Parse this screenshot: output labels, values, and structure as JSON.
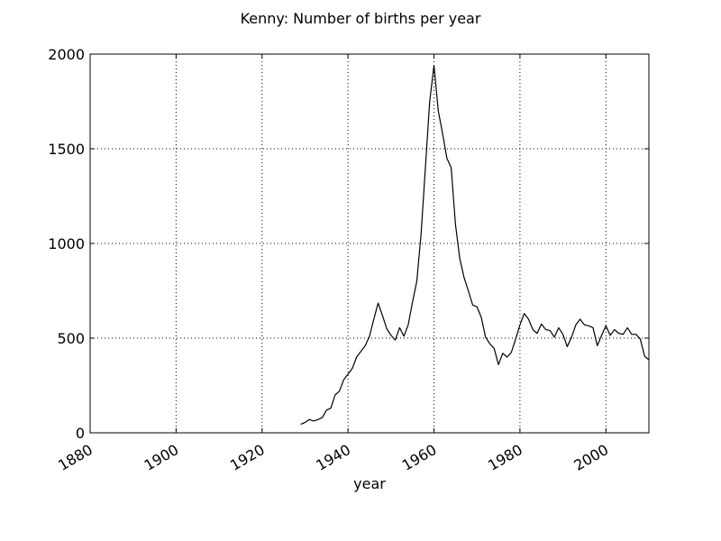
{
  "chart_data": {
    "type": "line",
    "title": "Kenny: Number of births per year",
    "xlabel": "year",
    "ylabel": "",
    "xlim": [
      1880,
      2010
    ],
    "ylim": [
      0,
      2000
    ],
    "x_ticks": [
      1880,
      1900,
      1920,
      1940,
      1960,
      1980,
      2000
    ],
    "y_ticks": [
      0,
      500,
      1000,
      1500,
      2000
    ],
    "grid": true,
    "line_color": "#000000",
    "series": [
      {
        "x": [
          1929,
          1930,
          1931,
          1932,
          1933,
          1934,
          1935,
          1936,
          1937,
          1938,
          1939,
          1940,
          1941,
          1942,
          1943,
          1944,
          1945,
          1946,
          1947,
          1948,
          1949,
          1950,
          1951,
          1952,
          1953,
          1954,
          1955,
          1956,
          1957,
          1958,
          1959,
          1960,
          1961,
          1962,
          1963,
          1964,
          1965,
          1966,
          1967,
          1968,
          1969,
          1970,
          1971,
          1972,
          1973,
          1974,
          1975,
          1976,
          1977,
          1978,
          1979,
          1980,
          1981,
          1982,
          1983,
          1984,
          1985,
          1986,
          1987,
          1988,
          1989,
          1990,
          1991,
          1992,
          1993,
          1994,
          1995,
          1996,
          1997,
          1998,
          1999,
          2000,
          2001,
          2002,
          2003,
          2004,
          2005,
          2006,
          2007,
          2008,
          2009,
          2010
        ],
        "values": [
          45,
          55,
          70,
          62,
          70,
          80,
          120,
          130,
          200,
          220,
          280,
          310,
          340,
          400,
          430,
          460,
          510,
          600,
          685,
          620,
          550,
          515,
          490,
          555,
          510,
          570,
          690,
          800,
          1050,
          1400,
          1750,
          1940,
          1700,
          1580,
          1450,
          1400,
          1100,
          920,
          820,
          750,
          675,
          665,
          610,
          505,
          470,
          445,
          360,
          420,
          400,
          425,
          495,
          570,
          630,
          600,
          545,
          525,
          575,
          545,
          540,
          505,
          555,
          520,
          455,
          505,
          570,
          600,
          570,
          565,
          555,
          460,
          515,
          565,
          515,
          545,
          525,
          520,
          555,
          520,
          520,
          495,
          405,
          385
        ]
      }
    ]
  }
}
